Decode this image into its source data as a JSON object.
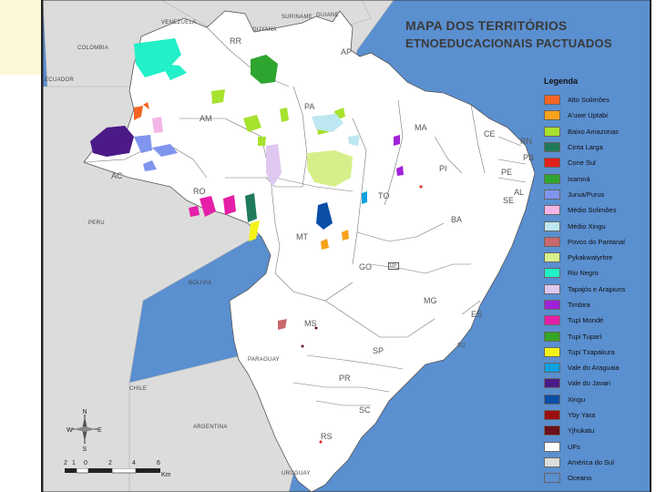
{
  "title": {
    "line1": "MAPA DOS TERRITÓRIOS",
    "line2": "ETNOEDUCACIONAIS PACTUADOS"
  },
  "countries": {
    "venezuela": "VENEZUELA",
    "guyana": "GUYANA",
    "suriname": "SURINAME",
    "guiane": "GUIANE",
    "colombia": "COLOMBIA",
    "ecuador": "ECUADOR",
    "peru": "PERU",
    "bolivia": "BOLIVIA",
    "paraguay": "PARAGUAY",
    "chile": "CHILE",
    "argentina": "ARGENTINA",
    "uruguay": "URUGUAY"
  },
  "states": {
    "rr": "RR",
    "ap": "AP",
    "am": "AM",
    "pa": "PA",
    "ma": "MA",
    "ce": "CE",
    "rn": "RN",
    "pb": "PB",
    "pe": "PE",
    "al": "AL",
    "pi": "PI",
    "to": "TO",
    "ba": "BA",
    "se": "SE",
    "ac": "AC",
    "ro": "RO",
    "mt": "MT",
    "go": "GO",
    "df": "DF",
    "mg": "MG",
    "es": "ES",
    "ms": "MS",
    "sp": "SP",
    "rj": "RJ",
    "pr": "PR",
    "sc": "SC",
    "rs": "RS"
  },
  "legend": {
    "title": "Legenda",
    "items": [
      {
        "label": "Alto Solimões",
        "color": "#f26522"
      },
      {
        "label": "A'uwe Uptabi",
        "color": "#f7a21b"
      },
      {
        "label": "Baixo Amazonas",
        "color": "#a6e22e"
      },
      {
        "label": "Cinta Larga",
        "color": "#1f7a5a"
      },
      {
        "label": "Cone Sul",
        "color": "#e0201b"
      },
      {
        "label": "Ixamná",
        "color": "#2ea52e"
      },
      {
        "label": "Juruá/Purus",
        "color": "#7f95ee"
      },
      {
        "label": "Médio Solimões",
        "color": "#f3b6e6"
      },
      {
        "label": "Médio Xingu",
        "color": "#bde7f0"
      },
      {
        "label": "Povos do Pantanal",
        "color": "#c9676b"
      },
      {
        "label": "Pykakwatyrhre",
        "color": "#d7ef8a"
      },
      {
        "label": "Rio Negro",
        "color": "#22f0c8"
      },
      {
        "label": "Tapajós e Arapiuns",
        "color": "#dfc8f0"
      },
      {
        "label": "Timbira",
        "color": "#a020d8"
      },
      {
        "label": "Tupi Mondé",
        "color": "#e61fa8"
      },
      {
        "label": "Tupi Tuparí",
        "color": "#36a526"
      },
      {
        "label": "Tupi Txapakura",
        "color": "#f4f21a"
      },
      {
        "label": "Vale do Araguaia",
        "color": "#0ea0e0"
      },
      {
        "label": "Vale do Javari",
        "color": "#4b1a87"
      },
      {
        "label": "Xingu",
        "color": "#0a4ea8"
      },
      {
        "label": "Yby Yara",
        "color": "#9a1010"
      },
      {
        "label": "Yjhukatu",
        "color": "#6a0f1a"
      },
      {
        "label": "UFs",
        "color": "#ffffff"
      },
      {
        "label": "América do Sul",
        "color": "#dcdcdc"
      },
      {
        "label": "Oceano",
        "color": "#5a8fd0"
      }
    ]
  },
  "compass": {
    "n": "N",
    "s": "S",
    "e": "E",
    "w": "W"
  },
  "scale": {
    "labels": [
      "2",
      "1",
      "0",
      "2",
      "4",
      "6"
    ],
    "unit": "Km"
  }
}
